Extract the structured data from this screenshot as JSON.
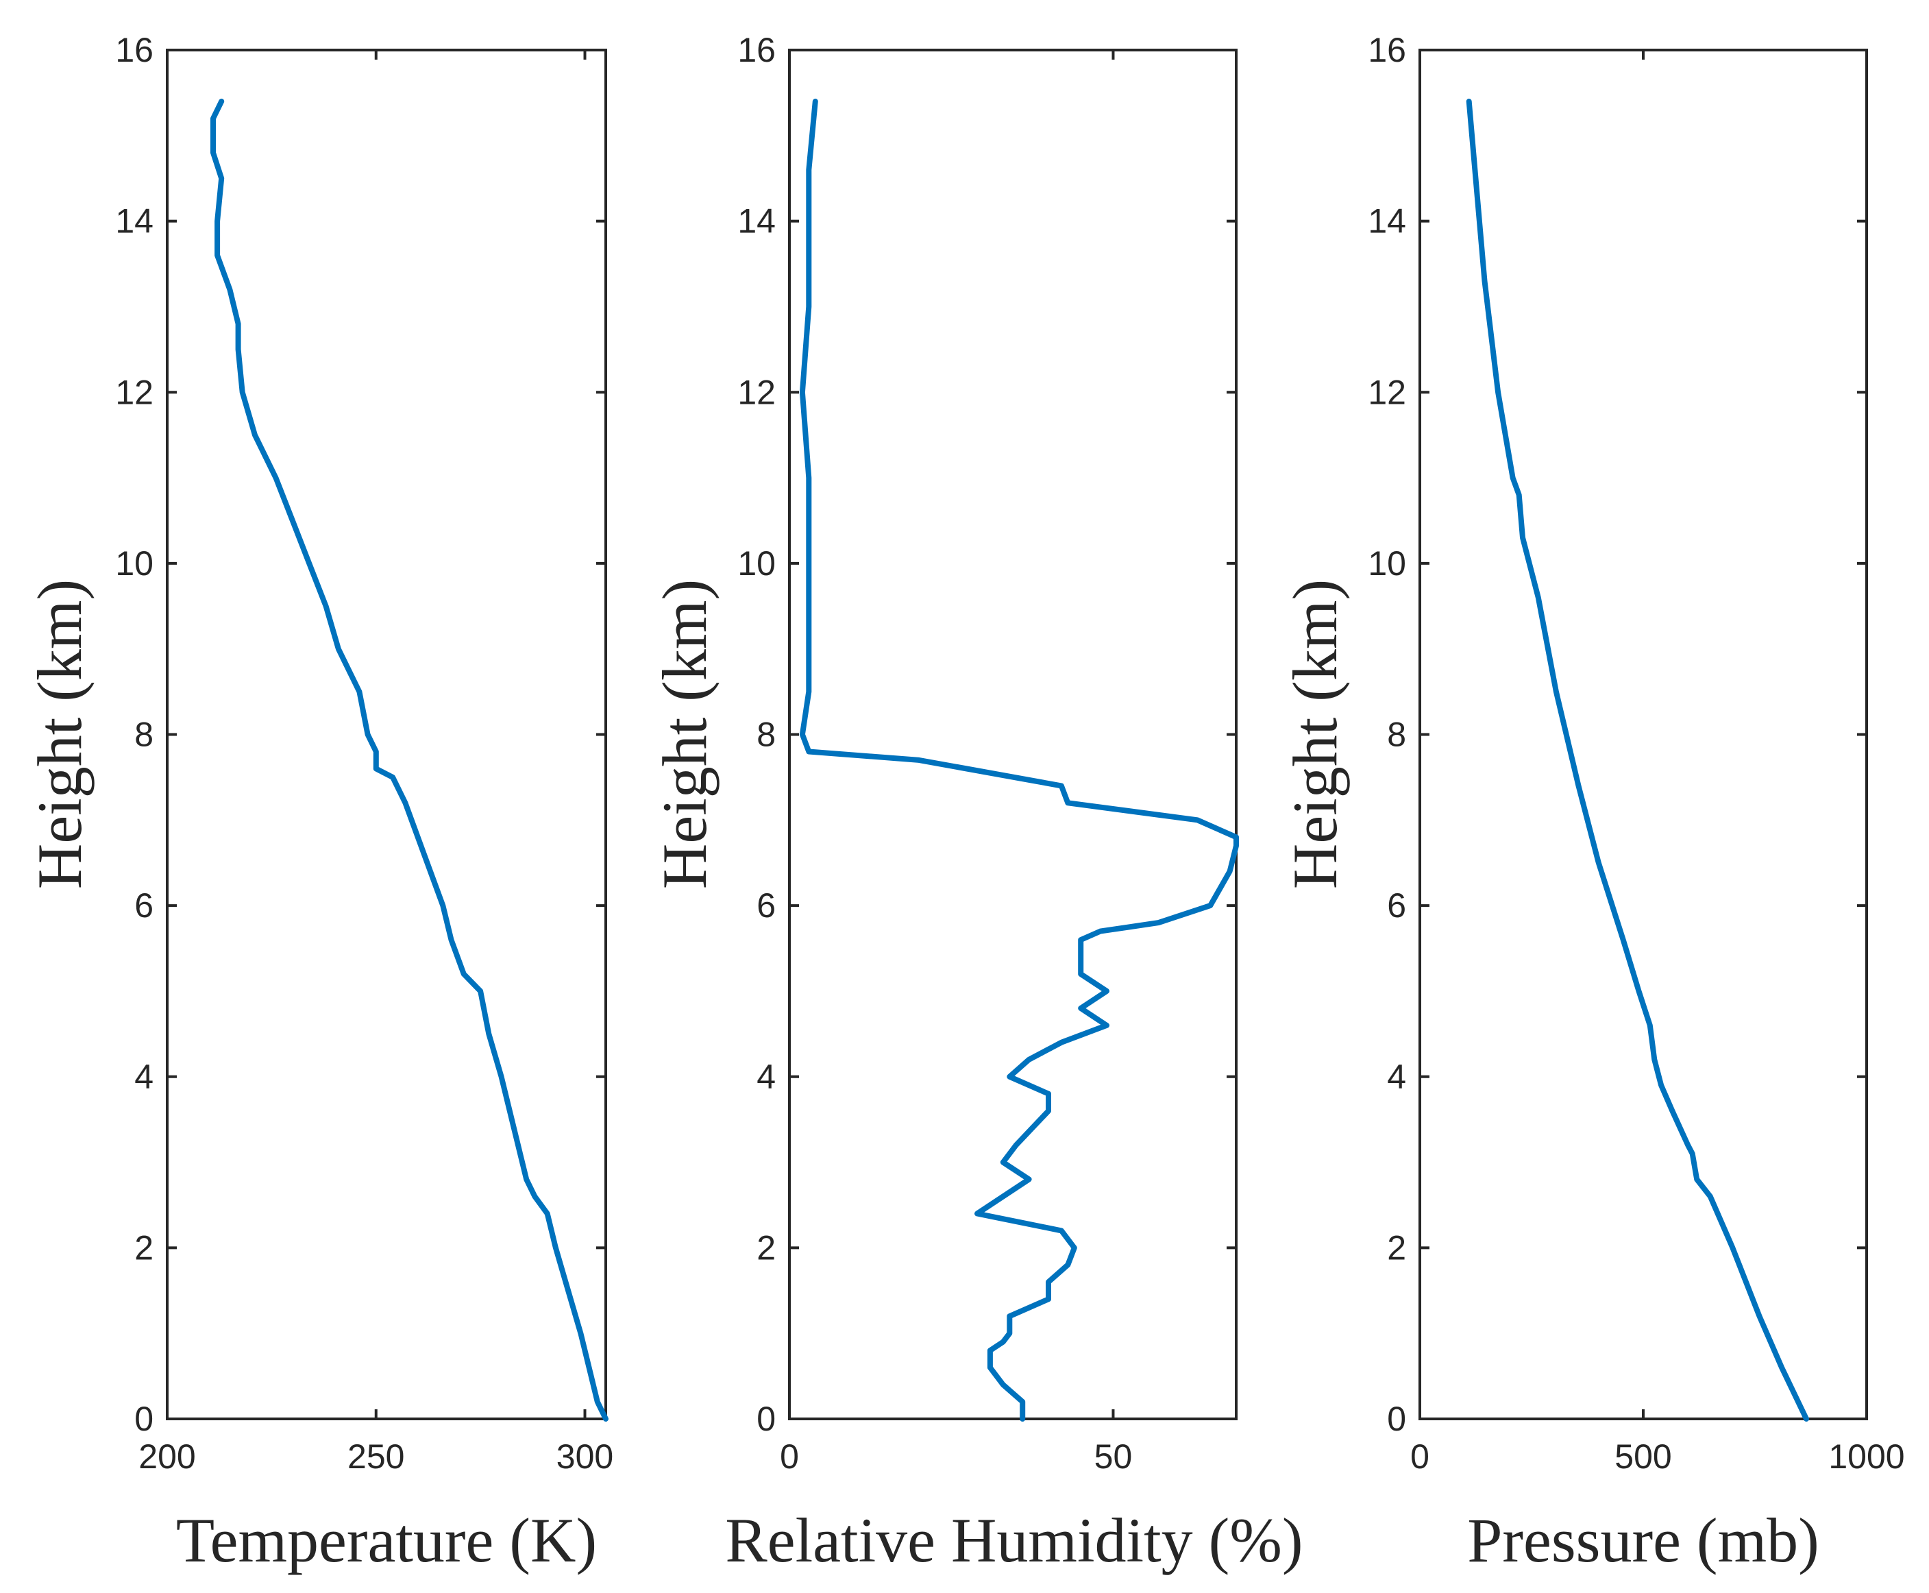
{
  "figure": {
    "line_color": "#0072BD",
    "text_color": "#262626"
  },
  "chart_data": [
    {
      "type": "line",
      "title": "",
      "xlabel": "Temperature (K)",
      "ylabel": "Height (km)",
      "xlim": [
        200,
        305
      ],
      "ylim": [
        0,
        16
      ],
      "xticks": [
        200,
        250,
        300
      ],
      "yticks": [
        0,
        2,
        4,
        6,
        8,
        10,
        12,
        14,
        16
      ],
      "grid": false,
      "series": [
        {
          "name": "Temperature",
          "x": [
            305,
            303,
            301,
            299,
            296,
            293,
            291,
            288,
            286,
            285,
            284,
            282,
            280,
            277,
            275,
            271,
            268,
            266,
            263,
            260,
            257,
            254,
            250,
            250,
            248,
            246,
            241,
            238,
            234,
            230,
            226,
            221,
            218,
            217,
            217,
            215,
            212,
            212,
            213,
            211,
            211,
            213
          ],
          "y": [
            0.0,
            0.2,
            0.6,
            1.0,
            1.5,
            2.0,
            2.4,
            2.6,
            2.8,
            3.0,
            3.2,
            3.6,
            4.0,
            4.5,
            5.0,
            5.2,
            5.6,
            6.0,
            6.4,
            6.8,
            7.2,
            7.5,
            7.6,
            7.8,
            8.0,
            8.5,
            9.0,
            9.5,
            10.0,
            10.5,
            11.0,
            11.5,
            12.0,
            12.5,
            12.8,
            13.2,
            13.6,
            14.0,
            14.5,
            14.8,
            15.2,
            15.4
          ]
        }
      ]
    },
    {
      "type": "line",
      "title": "",
      "xlabel": "Relative Humidity (%)",
      "ylabel": "Height (km)",
      "xlim": [
        0,
        69
      ],
      "ylim": [
        0,
        16
      ],
      "xticks": [
        0,
        50
      ],
      "yticks": [
        0,
        2,
        4,
        6,
        8,
        10,
        12,
        14,
        16
      ],
      "grid": false,
      "series": [
        {
          "name": "Relative Humidity",
          "x": [
            36,
            36,
            33,
            31,
            31,
            33,
            34,
            34,
            40,
            40,
            43,
            44,
            42,
            29,
            37,
            33,
            35,
            40,
            40,
            34,
            37,
            42,
            49,
            45,
            49,
            45,
            45,
            48,
            57,
            65,
            68,
            69,
            69,
            63,
            43,
            42,
            42,
            20,
            3,
            2,
            3,
            3,
            3,
            3,
            3,
            3,
            2,
            3,
            3,
            3,
            4
          ],
          "y": [
            0.0,
            0.2,
            0.4,
            0.6,
            0.8,
            0.9,
            1.0,
            1.2,
            1.4,
            1.6,
            1.8,
            2.0,
            2.2,
            2.4,
            2.8,
            3.0,
            3.2,
            3.6,
            3.8,
            4.0,
            4.2,
            4.4,
            4.6,
            4.8,
            5.0,
            5.2,
            5.6,
            5.7,
            5.8,
            6.0,
            6.4,
            6.7,
            6.8,
            7.0,
            7.2,
            7.4,
            7.4,
            7.7,
            7.8,
            8.0,
            8.5,
            9.0,
            9.5,
            10.0,
            10.5,
            11.0,
            12.0,
            13.0,
            14.0,
            14.6,
            15.4
          ]
        }
      ]
    },
    {
      "type": "line",
      "title": "",
      "xlabel": "Pressure (mb)",
      "ylabel": "Height (km)",
      "xlim": [
        0,
        1000
      ],
      "ylim": [
        0,
        16
      ],
      "xticks": [
        0,
        500,
        1000
      ],
      "yticks": [
        0,
        2,
        4,
        6,
        8,
        10,
        12,
        14,
        16
      ],
      "grid": false,
      "series": [
        {
          "name": "Pressure",
          "x": [
            865,
            810,
            760,
            700,
            650,
            620,
            610,
            600,
            565,
            540,
            525,
            515,
            490,
            455,
            400,
            355,
            305,
            265,
            230,
            222,
            208,
            175,
            145,
            110
          ],
          "y": [
            0.0,
            0.6,
            1.2,
            2.0,
            2.6,
            2.8,
            3.1,
            3.2,
            3.6,
            3.9,
            4.2,
            4.6,
            5.0,
            5.6,
            6.5,
            7.4,
            8.5,
            9.6,
            10.3,
            10.8,
            11.0,
            12.0,
            13.3,
            15.4
          ]
        }
      ]
    }
  ]
}
